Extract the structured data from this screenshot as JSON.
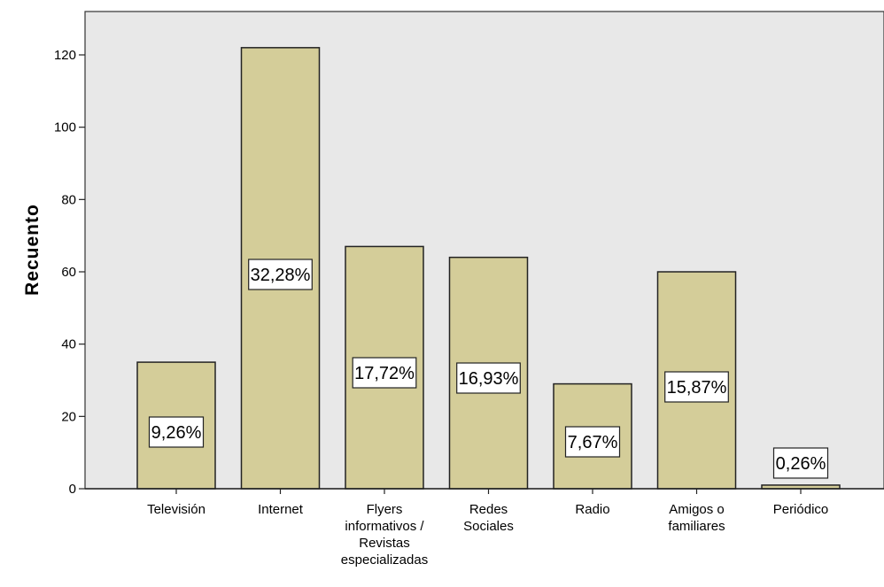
{
  "chart_data": {
    "type": "bar",
    "title": "",
    "xlabel": "",
    "ylabel": "Recuento",
    "ylim": [
      0,
      130
    ],
    "yticks": [
      0,
      20,
      40,
      60,
      80,
      100,
      120
    ],
    "grid": false,
    "categories": [
      [
        "Televisión"
      ],
      [
        "Internet"
      ],
      [
        "Flyers",
        "informativos /",
        "Revistas",
        "especializadas"
      ],
      [
        "Redes",
        "Sociales"
      ],
      [
        "Radio"
      ],
      [
        "Amigos o",
        "familiares"
      ],
      [
        "Periódico"
      ]
    ],
    "values": [
      35,
      122,
      67,
      64,
      29,
      60,
      1
    ],
    "data_labels": [
      "9,26%",
      "32,28%",
      "17,72%",
      "16,93%",
      "7,67%",
      "15,87%",
      "0,26%"
    ],
    "colors": {
      "plot_background": "#e8e8e8",
      "bar_fill": "#d4cd99",
      "bar_stroke": "#222222",
      "label_box": "#ffffff"
    }
  }
}
